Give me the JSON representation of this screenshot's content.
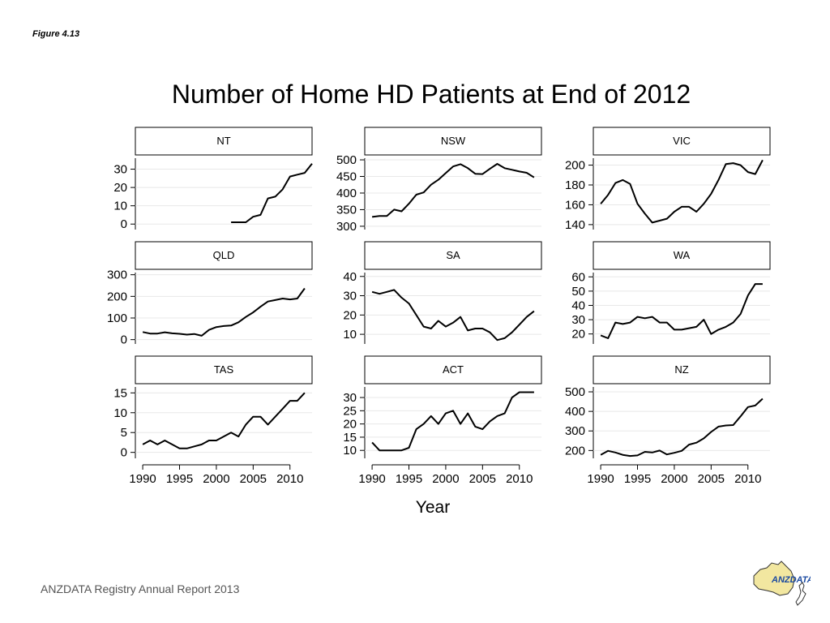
{
  "figure_label": "Figure 4.13",
  "footer_text": "ANZDATA Registry Annual Report 2013",
  "logo_text": "ANZDATA",
  "chart_data": {
    "type": "line",
    "title": "Number of Home HD Patients at End of 2012",
    "xlabel": "Year",
    "x_ticks": [
      1990,
      1995,
      2000,
      2005,
      2010
    ],
    "xlim": [
      1989,
      2013
    ],
    "grid": true,
    "line_color": "#000000",
    "panels": [
      {
        "name": "NT",
        "ylim": [
          -3,
          36
        ],
        "yticks": [
          0,
          10,
          20,
          30
        ],
        "points": [
          [
            2002,
            1
          ],
          [
            2004,
            1
          ],
          [
            2005,
            4
          ],
          [
            2006,
            5
          ],
          [
            2007,
            14
          ],
          [
            2008,
            15
          ],
          [
            2009,
            19
          ],
          [
            2010,
            26
          ],
          [
            2011,
            27
          ],
          [
            2012,
            28
          ],
          [
            2013,
            33
          ]
        ]
      },
      {
        "name": "NSW",
        "ylim": [
          290,
          505
        ],
        "yticks": [
          300,
          350,
          400,
          450,
          500
        ],
        "points": [
          [
            1990,
            328
          ],
          [
            1991,
            331
          ],
          [
            1992,
            331
          ],
          [
            1993,
            350
          ],
          [
            1994,
            345
          ],
          [
            1995,
            368
          ],
          [
            1996,
            395
          ],
          [
            1997,
            402
          ],
          [
            1998,
            425
          ],
          [
            1999,
            440
          ],
          [
            2000,
            460
          ],
          [
            2001,
            480
          ],
          [
            2002,
            487
          ],
          [
            2003,
            475
          ],
          [
            2004,
            458
          ],
          [
            2005,
            457
          ],
          [
            2006,
            473
          ],
          [
            2007,
            488
          ],
          [
            2008,
            475
          ],
          [
            2009,
            470
          ],
          [
            2010,
            465
          ],
          [
            2011,
            461
          ],
          [
            2012,
            447
          ]
        ]
      },
      {
        "name": "VIC",
        "ylim": [
          135,
          207
        ],
        "yticks": [
          140,
          160,
          180,
          200
        ],
        "points": [
          [
            1990,
            161
          ],
          [
            1991,
            170
          ],
          [
            1992,
            182
          ],
          [
            1993,
            185
          ],
          [
            1994,
            181
          ],
          [
            1995,
            161
          ],
          [
            1996,
            151
          ],
          [
            1997,
            142
          ],
          [
            1998,
            144
          ],
          [
            1999,
            146
          ],
          [
            2000,
            153
          ],
          [
            2001,
            158
          ],
          [
            2002,
            158
          ],
          [
            2003,
            153
          ],
          [
            2004,
            161
          ],
          [
            2005,
            171
          ],
          [
            2006,
            185
          ],
          [
            2007,
            201
          ],
          [
            2008,
            202
          ],
          [
            2009,
            200
          ],
          [
            2010,
            193
          ],
          [
            2011,
            191
          ],
          [
            2012,
            205
          ]
        ]
      },
      {
        "name": "QLD",
        "ylim": [
          -20,
          310
        ],
        "yticks": [
          0,
          100,
          200,
          300
        ],
        "points": [
          [
            1990,
            35
          ],
          [
            1991,
            28
          ],
          [
            1992,
            28
          ],
          [
            1993,
            34
          ],
          [
            1994,
            29
          ],
          [
            1995,
            27
          ],
          [
            1996,
            23
          ],
          [
            1997,
            26
          ],
          [
            1998,
            18
          ],
          [
            1999,
            45
          ],
          [
            2000,
            58
          ],
          [
            2001,
            63
          ],
          [
            2002,
            65
          ],
          [
            2003,
            80
          ],
          [
            2004,
            105
          ],
          [
            2005,
            126
          ],
          [
            2006,
            152
          ],
          [
            2007,
            176
          ],
          [
            2008,
            183
          ],
          [
            2009,
            190
          ],
          [
            2010,
            186
          ],
          [
            2011,
            190
          ],
          [
            2012,
            237
          ]
        ]
      },
      {
        "name": "SA",
        "ylim": [
          5,
          42
        ],
        "yticks": [
          10,
          20,
          30,
          40
        ],
        "points": [
          [
            1990,
            32
          ],
          [
            1991,
            31
          ],
          [
            1992,
            32
          ],
          [
            1993,
            33
          ],
          [
            1994,
            29
          ],
          [
            1995,
            26
          ],
          [
            1996,
            20
          ],
          [
            1997,
            14
          ],
          [
            1998,
            13
          ],
          [
            1999,
            17
          ],
          [
            2000,
            14
          ],
          [
            2001,
            16
          ],
          [
            2002,
            19
          ],
          [
            2003,
            12
          ],
          [
            2004,
            13
          ],
          [
            2005,
            13
          ],
          [
            2006,
            11
          ],
          [
            2007,
            7
          ],
          [
            2008,
            8
          ],
          [
            2009,
            11
          ],
          [
            2010,
            15
          ],
          [
            2011,
            19
          ],
          [
            2012,
            22
          ]
        ]
      },
      {
        "name": "WA",
        "ylim": [
          13,
          63
        ],
        "yticks": [
          20,
          30,
          40,
          50,
          60
        ],
        "points": [
          [
            1990,
            19
          ],
          [
            1991,
            17
          ],
          [
            1992,
            28
          ],
          [
            1993,
            27
          ],
          [
            1994,
            28
          ],
          [
            1995,
            32
          ],
          [
            1996,
            31
          ],
          [
            1997,
            32
          ],
          [
            1998,
            28
          ],
          [
            1999,
            28
          ],
          [
            2000,
            23
          ],
          [
            2001,
            23
          ],
          [
            2002,
            24
          ],
          [
            2003,
            25
          ],
          [
            2004,
            30
          ],
          [
            2005,
            20
          ],
          [
            2006,
            23
          ],
          [
            2007,
            25
          ],
          [
            2008,
            28
          ],
          [
            2009,
            34
          ],
          [
            2010,
            47
          ],
          [
            2011,
            55
          ],
          [
            2012,
            55
          ]
        ]
      },
      {
        "name": "TAS",
        "ylim": [
          -1.5,
          16.5
        ],
        "yticks": [
          0,
          5,
          10,
          15
        ],
        "points": [
          [
            1990,
            2
          ],
          [
            1991,
            3
          ],
          [
            1992,
            2
          ],
          [
            1993,
            3
          ],
          [
            1994,
            2
          ],
          [
            1995,
            1
          ],
          [
            1996,
            1
          ],
          [
            1997,
            1.5
          ],
          [
            1998,
            2
          ],
          [
            1999,
            3
          ],
          [
            2000,
            3
          ],
          [
            2001,
            4
          ],
          [
            2002,
            5
          ],
          [
            2003,
            4
          ],
          [
            2004,
            7
          ],
          [
            2005,
            9
          ],
          [
            2006,
            9
          ],
          [
            2007,
            7
          ],
          [
            2008,
            9
          ],
          [
            2009,
            11
          ],
          [
            2010,
            13
          ],
          [
            2011,
            13
          ],
          [
            2012,
            15
          ]
        ]
      },
      {
        "name": "ACT",
        "ylim": [
          7,
          34
        ],
        "yticks": [
          10,
          15,
          20,
          25,
          30
        ],
        "points": [
          [
            1990,
            13
          ],
          [
            1991,
            10
          ],
          [
            1992,
            10
          ],
          [
            1993,
            10
          ],
          [
            1994,
            10
          ],
          [
            1995,
            11
          ],
          [
            1996,
            18
          ],
          [
            1997,
            20
          ],
          [
            1998,
            23
          ],
          [
            1999,
            20
          ],
          [
            2000,
            24
          ],
          [
            2001,
            25
          ],
          [
            2002,
            20
          ],
          [
            2003,
            24
          ],
          [
            2004,
            19
          ],
          [
            2005,
            18
          ],
          [
            2006,
            21
          ],
          [
            2007,
            23
          ],
          [
            2008,
            24
          ],
          [
            2009,
            30
          ],
          [
            2010,
            32
          ],
          [
            2011,
            32
          ],
          [
            2012,
            32
          ]
        ]
      },
      {
        "name": "NZ",
        "ylim": [
          160,
          525
        ],
        "yticks": [
          200,
          300,
          400,
          500
        ],
        "points": [
          [
            1990,
            178
          ],
          [
            1991,
            198
          ],
          [
            1992,
            190
          ],
          [
            1993,
            178
          ],
          [
            1994,
            172
          ],
          [
            1995,
            175
          ],
          [
            1996,
            193
          ],
          [
            1997,
            190
          ],
          [
            1998,
            200
          ],
          [
            1999,
            180
          ],
          [
            2000,
            188
          ],
          [
            2001,
            198
          ],
          [
            2002,
            230
          ],
          [
            2003,
            240
          ],
          [
            2004,
            262
          ],
          [
            2005,
            295
          ],
          [
            2006,
            322
          ],
          [
            2007,
            328
          ],
          [
            2008,
            330
          ],
          [
            2009,
            375
          ],
          [
            2010,
            422
          ],
          [
            2011,
            430
          ],
          [
            2012,
            465
          ]
        ]
      }
    ]
  }
}
